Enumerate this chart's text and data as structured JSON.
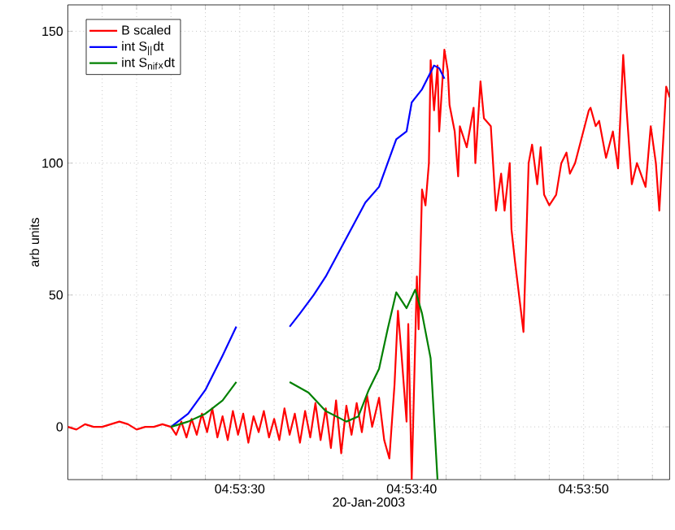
{
  "chart_data": {
    "type": "line",
    "xlabel": "20-Jan-2003",
    "ylabel": "arb units",
    "xlim": [
      "2003-01-20T04:53:20",
      "2003-01-20T04:53:55"
    ],
    "ylim": [
      -20,
      160
    ],
    "xticks": [
      {
        "value": "2003-01-20T04:53:22",
        "label": null
      },
      {
        "value": "2003-01-20T04:53:24",
        "label": null
      },
      {
        "value": "2003-01-20T04:53:26",
        "label": null
      },
      {
        "value": "2003-01-20T04:53:28",
        "label": null
      },
      {
        "value": "2003-01-20T04:53:30",
        "label": "04:53:30"
      },
      {
        "value": "2003-01-20T04:53:32",
        "label": null
      },
      {
        "value": "2003-01-20T04:53:34",
        "label": null
      },
      {
        "value": "2003-01-20T04:53:36",
        "label": null
      },
      {
        "value": "2003-01-20T04:53:38",
        "label": null
      },
      {
        "value": "2003-01-20T04:53:40",
        "label": "04:53:40"
      },
      {
        "value": "2003-01-20T04:53:42",
        "label": null
      },
      {
        "value": "2003-01-20T04:53:44",
        "label": null
      },
      {
        "value": "2003-01-20T04:53:46",
        "label": null
      },
      {
        "value": "2003-01-20T04:53:48",
        "label": null
      },
      {
        "value": "2003-01-20T04:53:50",
        "label": "04:53:50"
      },
      {
        "value": "2003-01-20T04:53:52",
        "label": null
      },
      {
        "value": "2003-01-20T04:53:54",
        "label": null
      }
    ],
    "yticks": [
      0,
      50,
      100,
      150
    ],
    "grid": true,
    "legend": "top left",
    "series": [
      {
        "name": "B scaled",
        "color": "#ff0000",
        "x": [
          "2003-01-20T04:53:20",
          "2003-01-20T04:53:20.5",
          "2003-01-20T04:53:21",
          "2003-01-20T04:53:21.5",
          "2003-01-20T04:53:22",
          "2003-01-20T04:53:22.5",
          "2003-01-20T04:53:23",
          "2003-01-20T04:53:23.5",
          "2003-01-20T04:53:24",
          "2003-01-20T04:53:24.5",
          "2003-01-20T04:53:25",
          "2003-01-20T04:53:25.5",
          "2003-01-20T04:53:26",
          "2003-01-20T04:53:26.3",
          "2003-01-20T04:53:26.6",
          "2003-01-20T04:53:26.9",
          "2003-01-20T04:53:27.2",
          "2003-01-20T04:53:27.5",
          "2003-01-20T04:53:27.8",
          "2003-01-20T04:53:28.1",
          "2003-01-20T04:53:28.4",
          "2003-01-20T04:53:28.7",
          "2003-01-20T04:53:29",
          "2003-01-20T04:53:29.3",
          "2003-01-20T04:53:29.6",
          "2003-01-20T04:53:29.9",
          "2003-01-20T04:53:30.2",
          "2003-01-20T04:53:30.5",
          "2003-01-20T04:53:30.8",
          "2003-01-20T04:53:31.1",
          "2003-01-20T04:53:31.4",
          "2003-01-20T04:53:31.7",
          "2003-01-20T04:53:32",
          "2003-01-20T04:53:32.3",
          "2003-01-20T04:53:32.6",
          "2003-01-20T04:53:32.9",
          "2003-01-20T04:53:33.2",
          "2003-01-20T04:53:33.5",
          "2003-01-20T04:53:33.8",
          "2003-01-20T04:53:34.1",
          "2003-01-20T04:53:34.4",
          "2003-01-20T04:53:34.7",
          "2003-01-20T04:53:35",
          "2003-01-20T04:53:35.3",
          "2003-01-20T04:53:35.6",
          "2003-01-20T04:53:35.9",
          "2003-01-20T04:53:36.2",
          "2003-01-20T04:53:36.5",
          "2003-01-20T04:53:36.8",
          "2003-01-20T04:53:37.1",
          "2003-01-20T04:53:37.4",
          "2003-01-20T04:53:37.7",
          "2003-01-20T04:53:38.1",
          "2003-01-20T04:53:38.4",
          "2003-01-20T04:53:38.7",
          "2003-01-20T04:53:39",
          "2003-01-20T04:53:39.2",
          "2003-01-20T04:53:39.4",
          "2003-01-20T04:53:39.7",
          "2003-01-20T04:53:39.8",
          "2003-01-20T04:53:40",
          "2003-01-20T04:53:40.3",
          "2003-01-20T04:53:40.4",
          "2003-01-20T04:53:40.6",
          "2003-01-20T04:53:40.8",
          "2003-01-20T04:53:41",
          "2003-01-20T04:53:41.1",
          "2003-01-20T04:53:41.3",
          "2003-01-20T04:53:41.5",
          "2003-01-20T04:53:41.6",
          "2003-01-20T04:53:41.9",
          "2003-01-20T04:53:42.1",
          "2003-01-20T04:53:42.2",
          "2003-01-20T04:53:42.5",
          "2003-01-20T04:53:42.7",
          "2003-01-20T04:53:42.8",
          "2003-01-20T04:53:43.2",
          "2003-01-20T04:53:43.6",
          "2003-01-20T04:53:43.7",
          "2003-01-20T04:53:44",
          "2003-01-20T04:53:44.2",
          "2003-01-20T04:53:44.6",
          "2003-01-20T04:53:44.9",
          "2003-01-20T04:53:45.2",
          "2003-01-20T04:53:45.4",
          "2003-01-20T04:53:45.7",
          "2003-01-20T04:53:45.8",
          "2003-01-20T04:53:46",
          "2003-01-20T04:53:46.5",
          "2003-01-20T04:53:46.8",
          "2003-01-20T04:53:47",
          "2003-01-20T04:53:47.3",
          "2003-01-20T04:53:47.5",
          "2003-01-20T04:53:47.7",
          "2003-01-20T04:53:48",
          "2003-01-20T04:53:48.4",
          "2003-01-20T04:53:48.7",
          "2003-01-20T04:53:49",
          "2003-01-20T04:53:49.2",
          "2003-01-20T04:53:49.5",
          "2003-01-20T04:53:49.9",
          "2003-01-20T04:53:50.3",
          "2003-01-20T04:53:50.4",
          "2003-01-20T04:53:50.7",
          "2003-01-20T04:53:50.9",
          "2003-01-20T04:53:51.3",
          "2003-01-20T04:53:51.7",
          "2003-01-20T04:53:52",
          "2003-01-20T04:53:52.3",
          "2003-01-20T04:53:52.5",
          "2003-01-20T04:53:52.8",
          "2003-01-20T04:53:53.1",
          "2003-01-20T04:53:53.6",
          "2003-01-20T04:53:53.9",
          "2003-01-20T04:53:54.2",
          "2003-01-20T04:53:54.4",
          "2003-01-20T04:53:54.8",
          "2003-01-20T04:53:55"
        ],
        "values": [
          0,
          -1,
          1,
          0,
          0,
          1,
          2,
          1,
          -1,
          0,
          0,
          1,
          0,
          -3,
          2,
          -4,
          3,
          -3,
          5,
          -2,
          7,
          -4,
          4,
          -5,
          6,
          -3,
          5,
          -6,
          4,
          -2,
          6,
          -4,
          3,
          -5,
          7,
          -3,
          5,
          -6,
          6,
          -4,
          9,
          -5,
          7,
          -8,
          10,
          -10,
          8,
          -3,
          9,
          -2,
          12,
          0,
          11,
          -5,
          -12,
          16,
          44,
          28,
          2,
          39,
          -20,
          57,
          37,
          90,
          84,
          100,
          139,
          120,
          137,
          112,
          143,
          135,
          122,
          112,
          95,
          114,
          106,
          121,
          100,
          131,
          117,
          114,
          82,
          96,
          82,
          100,
          75,
          63,
          36,
          100,
          107,
          92,
          106,
          88,
          84,
          88,
          100,
          104,
          96,
          100,
          110,
          120,
          121,
          114,
          116,
          102,
          112,
          98,
          141,
          120,
          92,
          100,
          91,
          114,
          100,
          82,
          129,
          125
        ]
      },
      {
        "name": "int S$_{||}$dt",
        "color": "#0000ff",
        "x": [
          "2003-01-20T04:53:26",
          "2003-01-20T04:53:27",
          "2003-01-20T04:53:28",
          "2003-01-20T04:53:29",
          "2003-01-20T04:53:29.8",
          "2003-01-20T04:53:31",
          "2003-01-20T04:53:32.9",
          "2003-01-20T04:53:33.5",
          "2003-01-20T04:53:34.3",
          "2003-01-20T04:53:35",
          "2003-01-20T04:53:37.3",
          "2003-01-20T04:53:38.1",
          "2003-01-20T04:53:39.1",
          "2003-01-20T04:53:39.7",
          "2003-01-20T04:53:40",
          "2003-01-20T04:53:40.6",
          "2003-01-20T04:53:41.3",
          "2003-01-20T04:53:41.6",
          "2003-01-20T04:53:41.9"
        ],
        "values": [
          0,
          5,
          14,
          27,
          38,
          null,
          38,
          43,
          50,
          57,
          85,
          91,
          109,
          112,
          123,
          128,
          137,
          136,
          132
        ]
      },
      {
        "name": "int S$_{nif}$$_{x}$dt",
        "color": "#008000",
        "x": [
          "2003-01-20T04:53:26",
          "2003-01-20T04:53:27",
          "2003-01-20T04:53:28",
          "2003-01-20T04:53:29",
          "2003-01-20T04:53:29.8",
          "2003-01-20T04:53:31",
          "2003-01-20T04:53:32.9",
          "2003-01-20T04:53:34",
          "2003-01-20T04:53:35",
          "2003-01-20T04:53:35.9",
          "2003-01-20T04:53:36.2",
          "2003-01-20T04:53:36.9",
          "2003-01-20T04:53:37.5",
          "2003-01-20T04:53:38.1",
          "2003-01-20T04:53:38.6",
          "2003-01-20T04:53:39.1",
          "2003-01-20T04:53:39.7",
          "2003-01-20T04:53:40.2",
          "2003-01-20T04:53:40.6",
          "2003-01-20T04:53:41.1",
          "2003-01-20T04:53:41.5"
        ],
        "values": [
          0,
          2,
          5,
          10,
          17,
          null,
          17,
          13,
          6,
          3,
          2,
          4,
          14,
          22,
          37,
          51,
          45,
          52,
          43,
          26,
          -20
        ]
      }
    ]
  }
}
